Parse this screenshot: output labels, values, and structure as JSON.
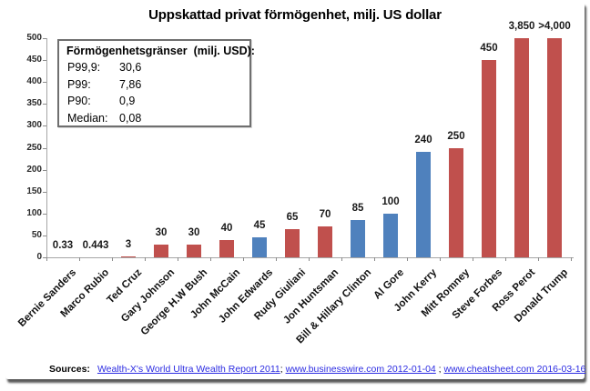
{
  "title": "Uppskattad privat förmögenhet, milj. US dollar",
  "legend_box": {
    "header": "Förmögenhetsgränser  (milj. USD):",
    "rows": [
      {
        "label": "P99,9:",
        "value": "30,6"
      },
      {
        "label": "P99:",
        "value": "7,86"
      },
      {
        "label": "P90:",
        "value": "0,9"
      },
      {
        "label": "Median:",
        "value": "0,08"
      }
    ]
  },
  "chart_data": {
    "type": "bar",
    "title": "Uppskattad privat förmögenhet, milj. US dollar",
    "xlabel": "",
    "ylabel": "",
    "ylim": [
      0,
      500
    ],
    "ytick_step": 50,
    "yticks": [
      0,
      50,
      100,
      150,
      200,
      250,
      300,
      350,
      400,
      450,
      500
    ],
    "grid": false,
    "legend_position": "none",
    "clip_bars_at_ymax": true,
    "categories": [
      "Bernie Sanders",
      "Marco Rubio",
      "Ted Cruz",
      "Gary Johnson",
      "George H.W Bush",
      "John McCain",
      "John Edwards",
      "Rudy Giuliani",
      "Jon Huntsman",
      "Bill & Hillary Clinton",
      "Al Gore",
      "John Kerry",
      "Mitt Romney",
      "Steve Forbes",
      "Ross Perot",
      "Donald Trump"
    ],
    "values": [
      0.33,
      0.443,
      3,
      30,
      30,
      40,
      45,
      65,
      70,
      85,
      100,
      240,
      250,
      450,
      3850,
      4000
    ],
    "value_labels": [
      "0.33",
      "0.443",
      "3",
      "30",
      "30",
      "40",
      "45",
      "65",
      "70",
      "85",
      "100",
      "240",
      "250",
      "450",
      "3,850",
      ">4,000"
    ],
    "bar_color_keys": [
      "blue",
      "red",
      "red",
      "red",
      "red",
      "red",
      "blue",
      "red",
      "red",
      "blue",
      "blue",
      "blue",
      "red",
      "red",
      "red",
      "red"
    ],
    "colors": {
      "red": "#C0504D",
      "blue": "#4F81BD"
    }
  },
  "sources": {
    "prefix": "Sources:",
    "links": [
      {
        "text": "Wealth-X's World Ultra Wealth Report 2011"
      },
      {
        "text": "www.businesswire.com 2012-01-04"
      },
      {
        "text": "www.cheatsheet.com 2016-03-16"
      }
    ],
    "separators": [
      "; ",
      " ; "
    ]
  }
}
